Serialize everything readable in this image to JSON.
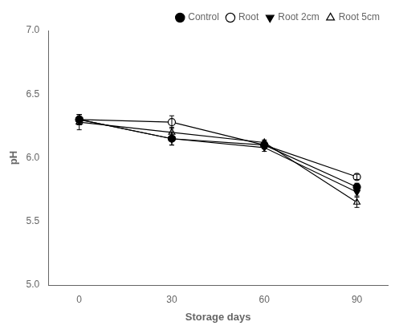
{
  "chart_data": {
    "type": "line",
    "x": [
      0,
      30,
      60,
      90
    ],
    "series": [
      {
        "name": "Control",
        "color": "black",
        "marker": "filled-circle",
        "values": [
          6.3,
          6.15,
          6.1,
          5.77
        ],
        "yerr": [
          0.04,
          0.05,
          0.03,
          0.03
        ]
      },
      {
        "name": "Root",
        "color": "black",
        "marker": "open-circle",
        "values": [
          6.3,
          6.28,
          6.1,
          5.85
        ],
        "yerr": [
          0.04,
          0.05,
          0.02,
          0.02
        ]
      },
      {
        "name": "Root 2cm",
        "color": "black",
        "marker": "filled-triangle-down",
        "values": [
          6.3,
          6.15,
          6.08,
          5.73
        ],
        "yerr": [
          0.04,
          0.05,
          0.03,
          0.03
        ]
      },
      {
        "name": "Root 5cm",
        "color": "black",
        "marker": "open-triangle-up",
        "values": [
          6.28,
          6.2,
          6.12,
          5.65
        ],
        "yerr": [
          0.06,
          0.04,
          0.02,
          0.04
        ]
      }
    ],
    "xlabel": "Storage days",
    "ylabel": "pH",
    "xlim": [
      -10,
      100
    ],
    "xticks": [
      0,
      30,
      60,
      90
    ],
    "ylim": [
      5.0,
      7.0
    ],
    "yticks": [
      {
        "value": 5.0,
        "label": "5.0"
      },
      5.5,
      {
        "value": 6.0,
        "label": "6.0"
      },
      6.5,
      {
        "value": 7.0,
        "label": "7.0"
      }
    ],
    "grid": false,
    "legend": "upper right"
  }
}
